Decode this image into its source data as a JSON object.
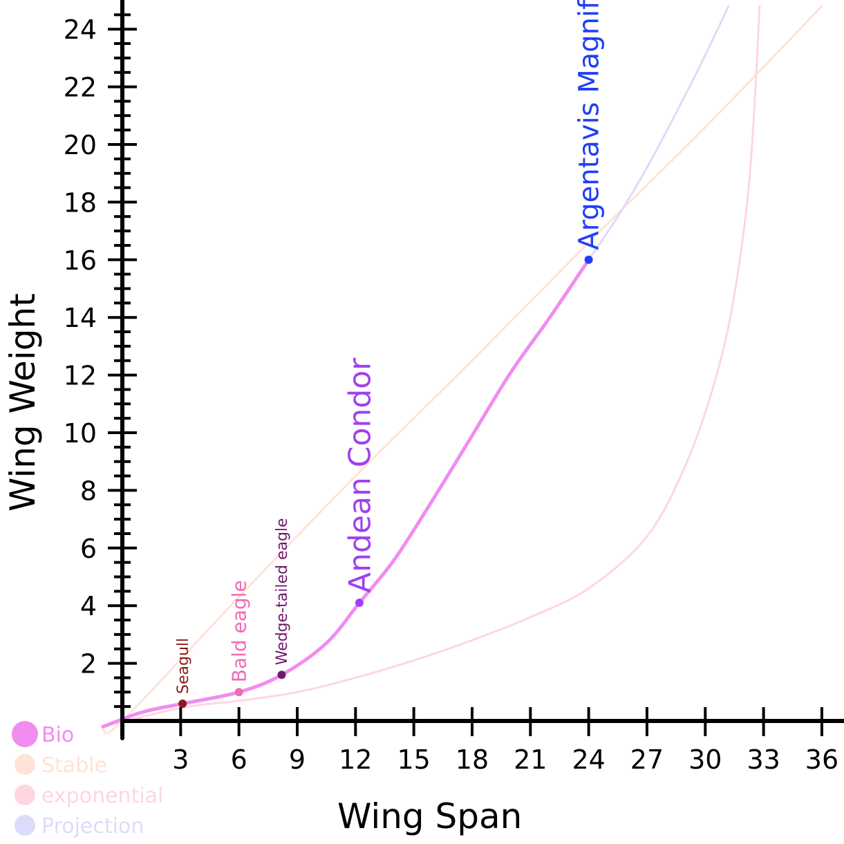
{
  "chart_data": {
    "type": "line",
    "xlabel": "Wing Span",
    "ylabel": "Wing Weight",
    "xlim": [
      0,
      36.5
    ],
    "ylim": [
      0,
      24.8
    ],
    "xticks": [
      3,
      6,
      9,
      12,
      15,
      18,
      21,
      24,
      27,
      30,
      33,
      36
    ],
    "yticks": [
      2,
      4,
      6,
      8,
      10,
      12,
      14,
      16,
      18,
      20,
      22,
      24
    ],
    "grid": false,
    "legend_position": "bottom-left",
    "series": [
      {
        "name": "Bio",
        "color": "#f08cf0",
        "x": [
          -1,
          1,
          3.1,
          6,
          8.2,
          10.5,
          12.2,
          14,
          16,
          18,
          20,
          22,
          24
        ],
        "y": [
          -0.2,
          0.3,
          0.6,
          1.0,
          1.6,
          2.7,
          4.1,
          5.6,
          7.7,
          9.9,
          12.1,
          14.0,
          16.0
        ]
      },
      {
        "name": "Stable",
        "color": "#ffe3d6",
        "x": [
          -1,
          0,
          6,
          12,
          18,
          24,
          30,
          36
        ],
        "y": [
          -0.3,
          0,
          4.3,
          8.5,
          12.5,
          16.6,
          20.6,
          24.8
        ]
      },
      {
        "name": "exponential",
        "color": "#ffd6e0",
        "x": [
          -1,
          3,
          6,
          9,
          12,
          15,
          18,
          21,
          24,
          27,
          29,
          30.5,
          31.5,
          32.3,
          32.8
        ],
        "y": [
          -0.2,
          0.45,
          0.7,
          1.0,
          1.5,
          2.1,
          2.8,
          3.6,
          4.6,
          6.4,
          8.9,
          11.8,
          14.8,
          19.0,
          24.8
        ]
      },
      {
        "name": "Projection",
        "color": "#dcdcfa",
        "x": [
          24,
          25.5,
          27,
          28.5,
          30,
          31.2
        ],
        "y": [
          16.0,
          17.5,
          19.2,
          21.1,
          23.1,
          24.8
        ]
      }
    ],
    "points": [
      {
        "label": "Seagull",
        "x": 3.1,
        "y": 0.6,
        "color": "#8b1a1a"
      },
      {
        "label": "Bald eagle",
        "x": 6,
        "y": 1.0,
        "color": "#f06bb4"
      },
      {
        "label": "Wedge-tailed eagle",
        "x": 8.2,
        "y": 1.6,
        "color": "#6e1a6e"
      },
      {
        "label": "Andean Condor",
        "x": 12.2,
        "y": 4.1,
        "color": "#a040f0"
      },
      {
        "label": "Argentavis Magnificens",
        "x": 24,
        "y": 16.0,
        "color": "#1f3ff5"
      }
    ]
  }
}
